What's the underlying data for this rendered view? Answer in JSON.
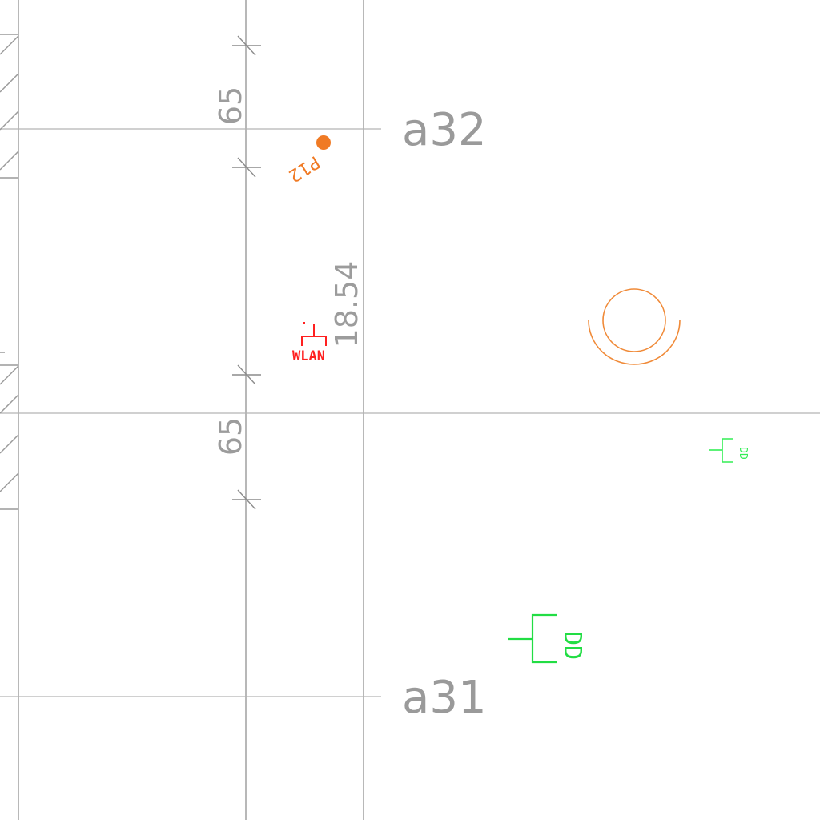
{
  "drawing": {
    "grid_labels": {
      "top": "a32",
      "bottom": "a31"
    },
    "dimensions": {
      "upper_spacing": "65",
      "lower_spacing": "65",
      "vertical_offset": "18.54"
    },
    "point_marker": {
      "label": "P12",
      "color": "#f07a24"
    },
    "wlan_symbol": {
      "label": "WLAN",
      "color": "#ff2020"
    },
    "data_outlets": [
      {
        "label": "DD",
        "color": "#22dd44"
      },
      {
        "label": "DD",
        "color": "#33ee55"
      }
    ],
    "ceiling_fixture": {
      "color": "#f08a38"
    }
  }
}
